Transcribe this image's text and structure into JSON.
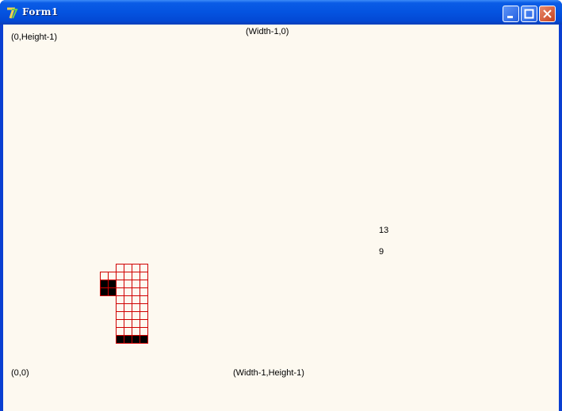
{
  "window": {
    "title": "Form1"
  },
  "labels": {
    "top_left": "(0,Height-1)",
    "top_right": "(Width-1,0)",
    "value_a": "13",
    "value_b": "9",
    "bottom_left": "(0,0)",
    "bottom_right": "(Width-1,Height-1)"
  }
}
